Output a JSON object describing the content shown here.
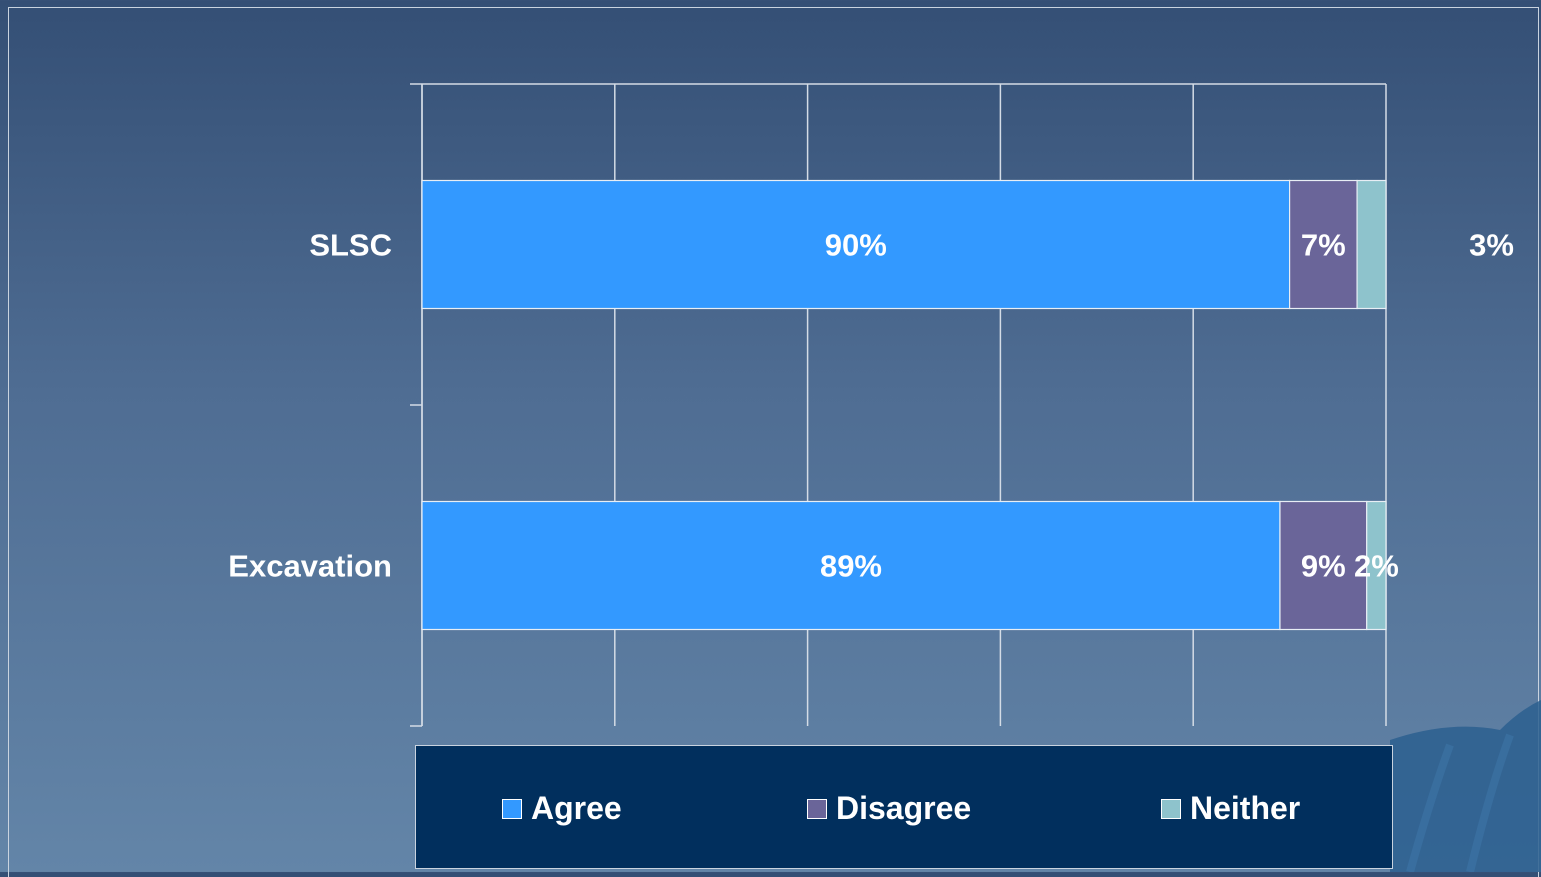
{
  "chart_data": {
    "type": "bar",
    "orientation": "horizontal",
    "stacked": true,
    "categories": [
      "SLSC",
      "Excavation"
    ],
    "series": [
      {
        "name": "Agree",
        "values": [
          90,
          89
        ],
        "color": "#3399ff"
      },
      {
        "name": "Disagree",
        "values": [
          7,
          9
        ],
        "color": "#6a6599"
      },
      {
        "name": "Neither",
        "values": [
          3,
          2
        ],
        "color": "#8ec3cc"
      }
    ],
    "data_labels": [
      [
        "90%",
        "7%",
        "3%"
      ],
      [
        "89%",
        "9%",
        "2%"
      ]
    ],
    "xlim": [
      0,
      100
    ],
    "grid": true,
    "legend_position": "bottom"
  }
}
